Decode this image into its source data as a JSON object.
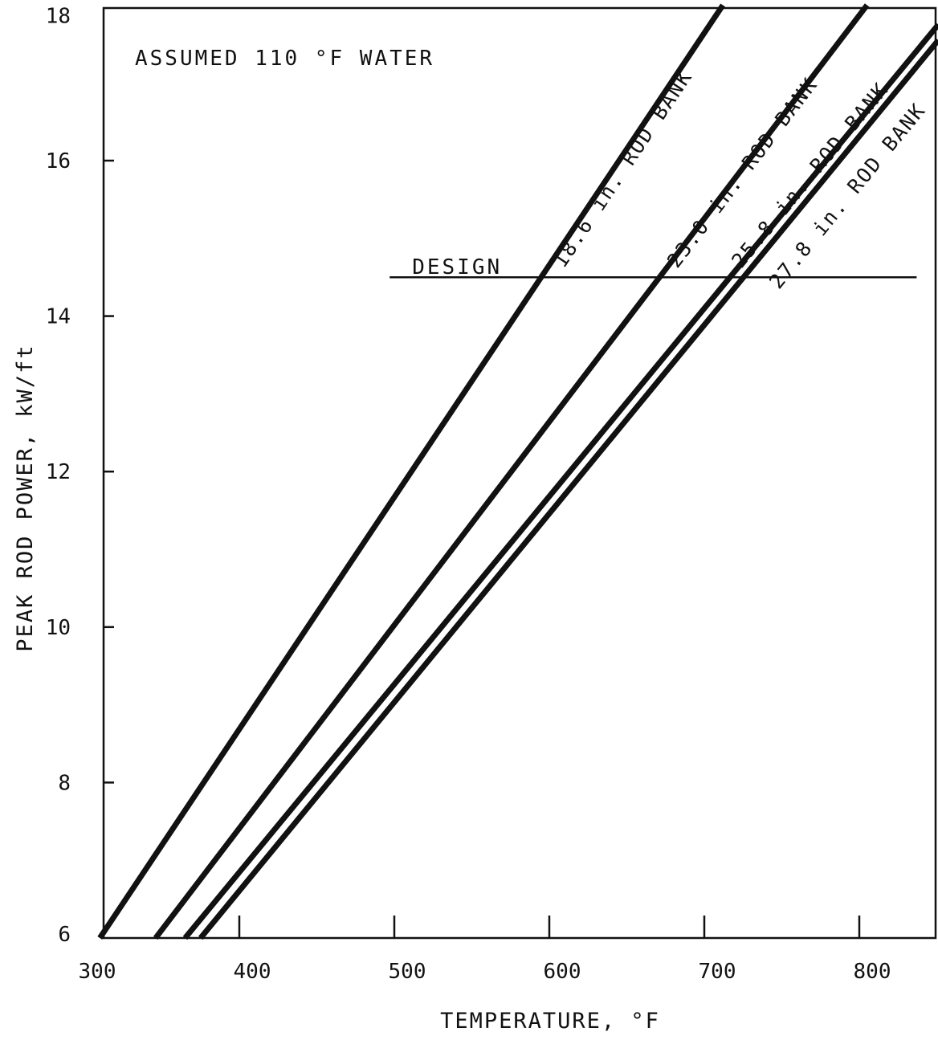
{
  "chart_data": {
    "type": "line",
    "title": "",
    "xlabel": "TEMPERATURE, °F",
    "ylabel": "PEAK ROD POWER, kW/ft",
    "xlim": [
      300,
      850
    ],
    "ylim": [
      6,
      18
    ],
    "xticks": [
      300,
      400,
      500,
      600,
      700,
      800
    ],
    "yticks": [
      6,
      8,
      10,
      12,
      14,
      16,
      18
    ],
    "grid": false,
    "legend": "none",
    "line_color": "#111111",
    "annotations": [
      {
        "text": "ASSUMED 110 °F WATER"
      },
      {
        "text": "DESIGN",
        "type": "hline",
        "y": 14.5,
        "x_range": [
          497,
          837
        ]
      }
    ],
    "series": [
      {
        "label": "18.6 in. ROD BANK",
        "x": [
          310,
          712
        ],
        "y": [
          6,
          18
        ]
      },
      {
        "label": "23.0 in. ROD BANK",
        "x": [
          346,
          805
        ],
        "y": [
          6,
          18
        ]
      },
      {
        "label": "25.8 in. ROD BANK",
        "x": [
          365,
          851
        ],
        "y": [
          6,
          17.75
        ]
      },
      {
        "label": "27.8 in. ROD BANK",
        "x": [
          375,
          851
        ],
        "y": [
          6,
          17.55
        ]
      }
    ]
  }
}
